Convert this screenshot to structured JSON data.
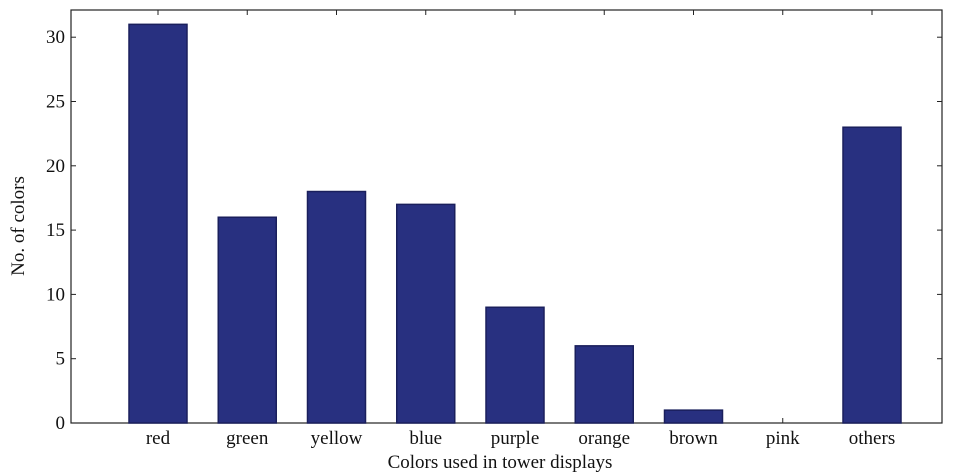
{
  "chart_data": {
    "type": "bar",
    "categories": [
      "red",
      "green",
      "yellow",
      "blue",
      "purple",
      "orange",
      "brown",
      "pink",
      "others"
    ],
    "values": [
      31,
      16,
      18,
      17,
      9,
      6,
      1,
      0,
      23
    ],
    "title": "",
    "xlabel": "Colors used in tower displays",
    "ylabel": "No. of colors",
    "ylim": [
      0,
      32
    ],
    "yticks": [
      0,
      5,
      10,
      15,
      20,
      25,
      30
    ],
    "grid": false,
    "bar_color": "#283080",
    "bar_edge_color": "#1a1f5c"
  }
}
